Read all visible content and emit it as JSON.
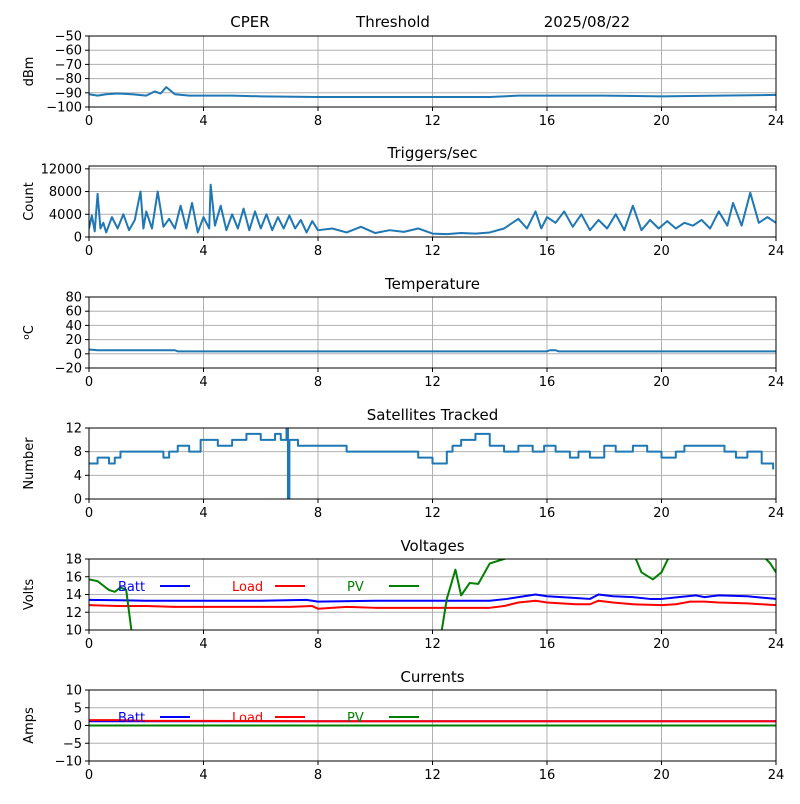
{
  "header": {
    "station": "CPER",
    "mode": "Threshold",
    "date": "2025/08/22"
  },
  "chart_data": [
    {
      "id": "signal",
      "type": "line",
      "title": "",
      "xlabel": "",
      "ylabel": "dBm",
      "xlim": [
        0,
        24
      ],
      "ylim": [
        -100,
        -50
      ],
      "xticks": [
        0,
        4,
        8,
        12,
        16,
        20,
        24
      ],
      "yticks": [
        -100,
        -90,
        -80,
        -70,
        -60,
        -50
      ],
      "ytick_labels": [
        "−100",
        "−90",
        "−80",
        "−70",
        "−60",
        "−50"
      ],
      "grid": true,
      "series": [
        {
          "color": "#1f77b4",
          "x": [
            0,
            0.3,
            0.6,
            1.0,
            1.5,
            2.0,
            2.3,
            2.5,
            2.7,
            3.0,
            3.5,
            4.0,
            5.0,
            6.0,
            8.0,
            10.0,
            12.0,
            14.0,
            15.0,
            16.0,
            18.0,
            20.0,
            22.0,
            24.0
          ],
          "y": [
            -91,
            -92,
            -91,
            -90.5,
            -91,
            -92,
            -89,
            -90.5,
            -86,
            -91,
            -92,
            -92,
            -92,
            -92.5,
            -93,
            -93,
            -93,
            -93,
            -92,
            -92,
            -92,
            -92.5,
            -92,
            -91.5
          ]
        }
      ]
    },
    {
      "id": "triggers",
      "type": "line",
      "title": "Triggers/sec",
      "xlabel": "",
      "ylabel": "Count",
      "xlim": [
        0,
        24
      ],
      "ylim": [
        0,
        12500
      ],
      "xticks": [
        0,
        4,
        8,
        12,
        16,
        20,
        24
      ],
      "yticks": [
        0,
        4000,
        8000,
        12000
      ],
      "ytick_labels": [
        "0",
        "4000",
        "8000",
        "12000"
      ],
      "grid": true,
      "series": [
        {
          "color": "#1f77b4",
          "x": [
            0,
            0.1,
            0.2,
            0.3,
            0.4,
            0.5,
            0.6,
            0.8,
            1.0,
            1.2,
            1.4,
            1.6,
            1.8,
            1.9,
            2.0,
            2.2,
            2.4,
            2.6,
            2.8,
            3.0,
            3.2,
            3.4,
            3.6,
            3.8,
            4.0,
            4.2,
            4.25,
            4.4,
            4.6,
            4.8,
            5.0,
            5.2,
            5.4,
            5.6,
            5.8,
            6.0,
            6.2,
            6.4,
            6.6,
            6.8,
            7.0,
            7.2,
            7.4,
            7.6,
            7.8,
            8.0,
            8.5,
            9.0,
            9.5,
            10.0,
            10.5,
            11.0,
            11.5,
            12.0,
            12.5,
            13.0,
            13.5,
            14.0,
            14.5,
            15.0,
            15.3,
            15.6,
            15.8,
            16.0,
            16.3,
            16.6,
            16.9,
            17.2,
            17.5,
            17.8,
            18.1,
            18.4,
            18.7,
            19.0,
            19.3,
            19.6,
            19.9,
            20.2,
            20.5,
            20.8,
            21.1,
            21.4,
            21.7,
            22.0,
            22.3,
            22.5,
            22.8,
            23.1,
            23.4,
            23.7,
            24.0
          ],
          "y": [
            1500,
            3800,
            1000,
            7600,
            1500,
            2500,
            800,
            3500,
            1500,
            4000,
            1200,
            3000,
            8000,
            1500,
            4500,
            1500,
            8000,
            1800,
            3200,
            1500,
            5500,
            1500,
            6000,
            800,
            3500,
            1500,
            9200,
            2000,
            5500,
            1200,
            4000,
            1500,
            5000,
            1200,
            4500,
            1500,
            4000,
            1200,
            3500,
            1500,
            3800,
            1500,
            3000,
            800,
            2800,
            1200,
            1500,
            800,
            1800,
            700,
            1200,
            900,
            1500,
            600,
            500,
            700,
            600,
            800,
            1500,
            3200,
            1500,
            4500,
            1500,
            3500,
            2500,
            4500,
            1800,
            4000,
            1200,
            3000,
            1500,
            4000,
            1200,
            5500,
            1200,
            3000,
            1500,
            2800,
            1500,
            2500,
            2000,
            3000,
            1500,
            4500,
            2000,
            6000,
            2000,
            7800,
            2500,
            3500,
            2500
          ]
        }
      ]
    },
    {
      "id": "temperature",
      "type": "line",
      "title": "Temperature",
      "xlabel": "",
      "ylabel": "°C",
      "ylabel_sup": "o",
      "ylabel_base": "C",
      "xlim": [
        0,
        24
      ],
      "ylim": [
        -20,
        80
      ],
      "xticks": [
        0,
        4,
        8,
        12,
        16,
        20,
        24
      ],
      "yticks": [
        -20,
        0,
        20,
        40,
        60,
        80
      ],
      "ytick_labels": [
        "−20",
        "0",
        "20",
        "40",
        "60",
        "80"
      ],
      "grid": true,
      "series": [
        {
          "color": "#1f77b4",
          "x": [
            0,
            0.3,
            3.0,
            3.1,
            16.0,
            16.1,
            16.3,
            16.4,
            24.0
          ],
          "y": [
            6,
            5,
            5,
            3.5,
            3.5,
            5,
            5,
            3.5,
            3.5
          ]
        }
      ]
    },
    {
      "id": "satellites",
      "type": "line",
      "title": "Satellites Tracked",
      "xlabel": "",
      "ylabel": "Number",
      "xlim": [
        0,
        24
      ],
      "ylim": [
        0,
        12
      ],
      "xticks": [
        0,
        4,
        8,
        12,
        16,
        20,
        24
      ],
      "yticks": [
        0,
        4,
        8,
        12
      ],
      "ytick_labels": [
        "0",
        "4",
        "8",
        "12"
      ],
      "grid": true,
      "series": [
        {
          "color": "#1f77b4",
          "step": true,
          "x": [
            0,
            0.3,
            0.7,
            0.9,
            1.1,
            2.6,
            2.8,
            3.1,
            3.5,
            3.9,
            4.5,
            5.0,
            5.5,
            6.0,
            6.5,
            6.7,
            6.9,
            6.95,
            7.0,
            7.3,
            8.0,
            9.0,
            10.0,
            11.0,
            11.5,
            12.0,
            12.5,
            12.7,
            13.0,
            13.5,
            14.0,
            14.5,
            15.0,
            15.5,
            15.9,
            16.3,
            16.8,
            17.1,
            17.5,
            18.0,
            18.4,
            19.0,
            19.5,
            20.0,
            20.5,
            20.8,
            21.5,
            22.2,
            22.6,
            23.0,
            23.5,
            23.9
          ],
          "y": [
            6,
            7,
            6,
            7,
            8,
            7,
            8,
            9,
            8,
            10,
            9,
            10,
            11,
            10,
            11,
            10,
            12,
            0,
            10,
            9,
            9,
            8,
            8,
            8,
            7,
            6,
            8,
            9,
            10,
            11,
            9,
            8,
            9,
            8,
            9,
            8,
            7,
            8,
            7,
            9,
            8,
            9,
            8,
            7,
            8,
            9,
            9,
            8,
            7,
            8,
            6,
            5
          ]
        }
      ]
    },
    {
      "id": "voltages",
      "type": "line",
      "title": "Voltages",
      "xlabel": "",
      "ylabel": "Volts",
      "xlim": [
        0,
        24
      ],
      "ylim": [
        10,
        18
      ],
      "xticks": [
        0,
        4,
        8,
        12,
        16,
        20,
        24
      ],
      "yticks": [
        10,
        12,
        14,
        16,
        18
      ],
      "ytick_labels": [
        "10",
        "12",
        "14",
        "16",
        "18"
      ],
      "grid": true,
      "legend": "top-left",
      "series": [
        {
          "name": "Batt",
          "color": "#0000ff",
          "x": [
            0,
            2,
            4,
            6,
            7.6,
            8,
            10,
            12,
            14,
            14.6,
            15,
            15.6,
            16,
            17,
            17.5,
            17.8,
            18.3,
            19,
            19.6,
            20,
            20.6,
            21.2,
            21.5,
            22,
            23,
            24
          ],
          "y": [
            13.4,
            13.3,
            13.3,
            13.3,
            13.4,
            13.2,
            13.3,
            13.3,
            13.3,
            13.5,
            13.7,
            14.0,
            13.8,
            13.6,
            13.5,
            14.0,
            13.8,
            13.7,
            13.5,
            13.5,
            13.7,
            13.9,
            13.7,
            13.9,
            13.8,
            13.5
          ]
        },
        {
          "name": "Load",
          "color": "#ff0000",
          "x": [
            0,
            1,
            2,
            3,
            4,
            5,
            6,
            7,
            7.8,
            8,
            9,
            10,
            11,
            12,
            13,
            14,
            14.5,
            15,
            15.6,
            16,
            17,
            17.5,
            17.8,
            18.3,
            19,
            20,
            20.5,
            21,
            21.5,
            22,
            23,
            24
          ],
          "y": [
            12.8,
            12.7,
            12.7,
            12.6,
            12.6,
            12.6,
            12.6,
            12.6,
            12.7,
            12.4,
            12.6,
            12.5,
            12.5,
            12.5,
            12.5,
            12.5,
            12.7,
            13.1,
            13.3,
            13.1,
            12.9,
            12.9,
            13.3,
            13.1,
            12.9,
            12.8,
            12.9,
            13.2,
            13.2,
            13.1,
            13.0,
            12.8
          ]
        },
        {
          "name": "PV",
          "color": "#008000",
          "x": [
            0,
            0.3,
            0.5,
            0.7,
            0.9,
            1.1,
            1.3,
            1.5,
            12.3,
            12.5,
            12.8,
            13.0,
            13.3,
            13.6,
            14.0,
            14.5,
            15.0,
            15.5,
            19.0,
            19.3,
            19.7,
            20.0,
            20.3,
            23.5,
            23.8,
            24.0
          ],
          "y": [
            15.7,
            15.5,
            15.0,
            14.5,
            14.3,
            14.8,
            14.5,
            9.5,
            9.5,
            13.5,
            16.8,
            13.9,
            15.3,
            15.2,
            17.5,
            18.0,
            18.5,
            18.8,
            18.8,
            16.5,
            15.7,
            16.5,
            18.5,
            18.5,
            17.5,
            16.5
          ]
        }
      ]
    },
    {
      "id": "currents",
      "type": "line",
      "title": "Currents",
      "xlabel": "",
      "ylabel": "Amps",
      "xlim": [
        0,
        24
      ],
      "ylim": [
        -10,
        10
      ],
      "xticks": [
        0,
        4,
        8,
        12,
        16,
        20,
        24
      ],
      "yticks": [
        -10,
        -5,
        0,
        5,
        10
      ],
      "ytick_labels": [
        "−10",
        "−5",
        "0",
        "5",
        "10"
      ],
      "grid": true,
      "legend": "top-left",
      "series": [
        {
          "name": "Batt",
          "color": "#0000ff",
          "x": [
            0,
            24
          ],
          "y": [
            1.2,
            1.2
          ]
        },
        {
          "name": "Load",
          "color": "#ff0000",
          "x": [
            0,
            1,
            2,
            4,
            8,
            12,
            16,
            20,
            24
          ],
          "y": [
            1.5,
            1.5,
            1.3,
            1.3,
            1.2,
            1.2,
            1.2,
            1.2,
            1.2
          ]
        },
        {
          "name": "PV",
          "color": "#008000",
          "x": [
            0,
            24
          ],
          "y": [
            0,
            0
          ]
        }
      ]
    }
  ]
}
